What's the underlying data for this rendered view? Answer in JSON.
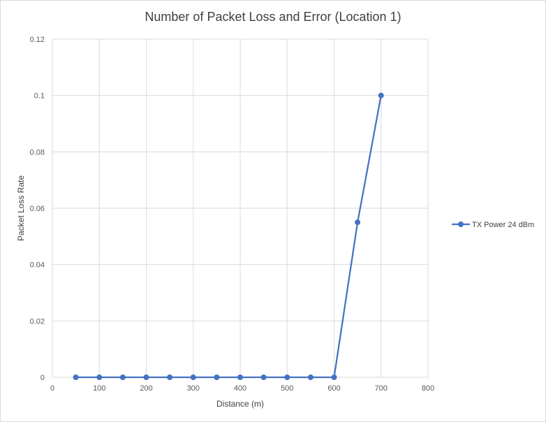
{
  "chart_data": {
    "type": "line",
    "title": "Number of Packet Loss and Error (Location 1)",
    "xlabel": "Distance (m)",
    "ylabel": "Packet Loss Rate",
    "xlim": [
      0,
      800
    ],
    "ylim": [
      0,
      0.12
    ],
    "x_ticks": [
      "0",
      "100",
      "200",
      "300",
      "400",
      "500",
      "600",
      "700",
      "800"
    ],
    "y_ticks": [
      "0",
      "0.02",
      "0.04",
      "0.06",
      "0.08",
      "0.1",
      "0.12"
    ],
    "grid": true,
    "legend_position": "right",
    "series": [
      {
        "name": "TX Power 24 dBm",
        "color": "#4472c4",
        "x": [
          50,
          100,
          150,
          200,
          250,
          300,
          350,
          400,
          450,
          500,
          550,
          600,
          650,
          700
        ],
        "y": [
          0,
          0,
          0,
          0,
          0,
          0,
          0,
          0,
          0,
          0,
          0,
          0,
          0.055,
          0.1
        ]
      }
    ]
  }
}
